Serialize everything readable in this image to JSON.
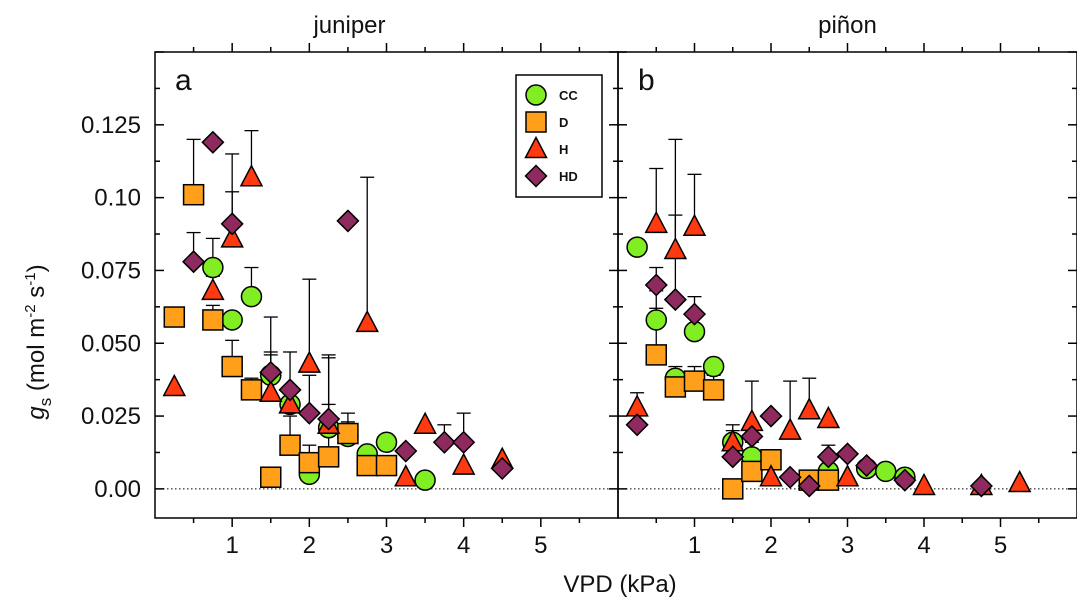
{
  "figure": {
    "xlabel": "VPD (kPa)",
    "ylabel_main": "g",
    "ylabel_sub": "s",
    "ylabel_units_open": " (mol m",
    "ylabel_units_sup1": "-2",
    "ylabel_units_mid": " s",
    "ylabel_units_sup2": "-1",
    "ylabel_units_close": ")"
  },
  "colors": {
    "CC": "#80ee22",
    "D": "#ff9f1a",
    "H": "#ff3a10",
    "HD": "#8e2a5e",
    "outline": "#000000"
  },
  "chart_data": [
    {
      "type": "scatter",
      "title": "juniper",
      "panel_label": "a",
      "xlabel": "VPD (kPa)",
      "ylabel": "gs (mol m-2 s-1)",
      "xlim": [
        0,
        6
      ],
      "ylim": [
        -0.01,
        0.15
      ],
      "xticks": [
        1,
        2,
        3,
        4,
        5
      ],
      "yticks": [
        0.0,
        0.025,
        0.05,
        0.075,
        0.1,
        0.125
      ],
      "ytick_labels": [
        "0.00",
        "0.025",
        "0.050",
        "0.075",
        "0.10",
        "0.125"
      ],
      "zero_line": true,
      "legend": {
        "placement": "top-right",
        "entries": [
          "CC",
          "D",
          "H",
          "HD"
        ]
      },
      "series": [
        {
          "name": "CC",
          "marker": "circle",
          "points": [
            [
              0.75,
              0.076,
              0.01
            ],
            [
              1.0,
              0.058,
              0
            ],
            [
              1.25,
              0.066,
              0.01
            ],
            [
              1.5,
              0.039,
              0.02
            ],
            [
              1.75,
              0.029,
              0.004
            ],
            [
              2.0,
              0.005,
              0
            ],
            [
              2.25,
              0.021,
              0.008
            ],
            [
              2.5,
              0.018,
              0.005
            ],
            [
              2.75,
              0.012,
              0
            ],
            [
              3.0,
              0.016,
              0
            ],
            [
              3.5,
              0.003,
              0
            ]
          ]
        },
        {
          "name": "D",
          "marker": "square",
          "points": [
            [
              0.25,
              0.059,
              0
            ],
            [
              0.5,
              0.101,
              0.019
            ],
            [
              0.75,
              0.058,
              0.005
            ],
            [
              1.0,
              0.042,
              0.009
            ],
            [
              1.25,
              0.034,
              0.004
            ],
            [
              1.5,
              0.004,
              0
            ],
            [
              1.75,
              0.015,
              0.01
            ],
            [
              2.0,
              0.009,
              0.006
            ],
            [
              2.25,
              0.011,
              0.009
            ],
            [
              2.5,
              0.019,
              0.007
            ],
            [
              2.75,
              0.008,
              0
            ],
            [
              3.0,
              0.008,
              0
            ]
          ]
        },
        {
          "name": "H",
          "marker": "triangle",
          "points": [
            [
              0.25,
              0.035,
              0
            ],
            [
              0.75,
              0.068,
              0.005
            ],
            [
              1.0,
              0.086,
              0.029
            ],
            [
              1.25,
              0.107,
              0.016
            ],
            [
              1.5,
              0.033,
              0.014
            ],
            [
              1.75,
              0.029,
              0.004
            ],
            [
              2.0,
              0.043,
              0.029
            ],
            [
              2.25,
              0.022,
              0.023
            ],
            [
              2.75,
              0.057,
              0.05
            ],
            [
              3.25,
              0.004,
              0
            ],
            [
              3.5,
              0.022,
              0
            ],
            [
              4.0,
              0.008,
              0
            ],
            [
              4.5,
              0.01,
              0
            ]
          ]
        },
        {
          "name": "HD",
          "marker": "diamond",
          "points": [
            [
              0.5,
              0.078,
              0.01
            ],
            [
              0.75,
              0.119,
              0
            ],
            [
              1.0,
              0.091,
              0.011
            ],
            [
              1.5,
              0.04,
              0.006
            ],
            [
              1.75,
              0.034,
              0.013
            ],
            [
              2.0,
              0.026,
              0.013
            ],
            [
              2.25,
              0.024,
              0.022
            ],
            [
              2.5,
              0.092,
              0
            ],
            [
              3.25,
              0.013,
              0
            ],
            [
              3.75,
              0.016,
              0.006
            ],
            [
              4.0,
              0.016,
              0.01
            ],
            [
              4.5,
              0.007,
              0
            ]
          ]
        }
      ]
    },
    {
      "type": "scatter",
      "title": "piñon",
      "panel_label": "b",
      "xlabel": "VPD (kPa)",
      "ylabel": "",
      "xlim": [
        0,
        6
      ],
      "ylim": [
        -0.01,
        0.15
      ],
      "xticks": [
        1,
        2,
        3,
        4,
        5
      ],
      "yticks": [
        0.0,
        0.025,
        0.05,
        0.075,
        0.1,
        0.125
      ],
      "zero_line": true,
      "series": [
        {
          "name": "CC",
          "marker": "circle",
          "points": [
            [
              0.25,
              0.083,
              0
            ],
            [
              0.5,
              0.058,
              0.01
            ],
            [
              0.75,
              0.038,
              0.004
            ],
            [
              1.0,
              0.054,
              0.006
            ],
            [
              1.25,
              0.042,
              0
            ],
            [
              1.5,
              0.016,
              0.004
            ],
            [
              1.75,
              0.011,
              0.005
            ],
            [
              2.75,
              0.006,
              0
            ],
            [
              3.25,
              0.007,
              0
            ],
            [
              3.5,
              0.006,
              0
            ],
            [
              3.75,
              0.004,
              0
            ]
          ]
        },
        {
          "name": "D",
          "marker": "square",
          "points": [
            [
              0.5,
              0.046,
              0.016
            ],
            [
              0.75,
              0.035,
              0.004
            ],
            [
              1.0,
              0.037,
              0.005
            ],
            [
              1.25,
              0.034,
              0.005
            ],
            [
              1.5,
              0.0,
              0
            ],
            [
              1.75,
              0.006,
              0.007
            ],
            [
              2.0,
              0.01,
              0
            ],
            [
              2.5,
              0.003,
              0
            ],
            [
              2.75,
              0.003,
              0
            ]
          ]
        },
        {
          "name": "H",
          "marker": "triangle",
          "points": [
            [
              0.25,
              0.028,
              0.005
            ],
            [
              0.5,
              0.091,
              0.019
            ],
            [
              0.75,
              0.082,
              0.038
            ],
            [
              1.0,
              0.09,
              0.018
            ],
            [
              1.5,
              0.016,
              0.006
            ],
            [
              1.75,
              0.023,
              0.014
            ],
            [
              2.0,
              0.004,
              0
            ],
            [
              2.25,
              0.02,
              0.017
            ],
            [
              2.5,
              0.027,
              0.011
            ],
            [
              2.75,
              0.024,
              0
            ],
            [
              3.0,
              0.004,
              0
            ],
            [
              4.0,
              0.001,
              0
            ],
            [
              4.75,
              0.001,
              0
            ],
            [
              5.25,
              0.002,
              0
            ]
          ]
        },
        {
          "name": "HD",
          "marker": "diamond",
          "points": [
            [
              0.25,
              0.022,
              0
            ],
            [
              0.5,
              0.07,
              0.006
            ],
            [
              0.75,
              0.065,
              0.029
            ],
            [
              1.0,
              0.06,
              0.006
            ],
            [
              1.5,
              0.011,
              0.006
            ],
            [
              1.75,
              0.018,
              0.004
            ],
            [
              2.0,
              0.025,
              0
            ],
            [
              2.25,
              0.004,
              0
            ],
            [
              2.5,
              0.001,
              0
            ],
            [
              2.75,
              0.011,
              0.004
            ],
            [
              3.0,
              0.012,
              0
            ],
            [
              3.25,
              0.008,
              0
            ],
            [
              3.75,
              0.003,
              0
            ],
            [
              4.75,
              0.001,
              0
            ]
          ]
        }
      ]
    }
  ]
}
